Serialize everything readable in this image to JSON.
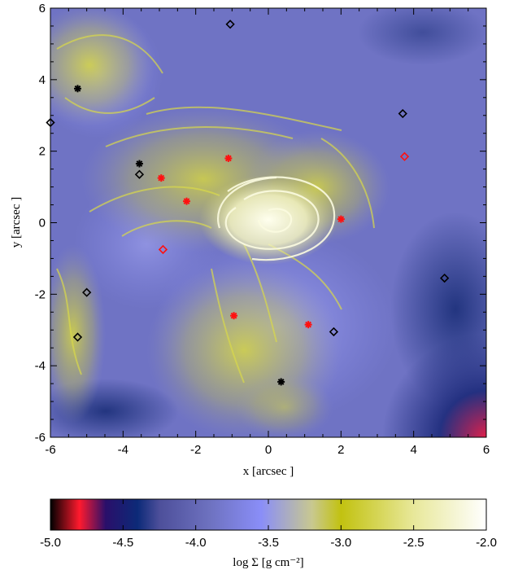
{
  "chart_data": {
    "type": "heatmap",
    "title": "",
    "xlabel": "x [arcsec ]",
    "ylabel": "y [arcsec ]",
    "xlim": [
      -6,
      6
    ],
    "ylim": [
      -6,
      6
    ],
    "xticks": [
      "-6",
      "-4",
      "-2",
      "0",
      "2",
      "4",
      "6"
    ],
    "yticks": [
      "-6",
      "-4",
      "-2",
      "0",
      "2",
      "4",
      "6"
    ],
    "grid": false,
    "colorbar": {
      "label": "log Σ [g cm⁻²]",
      "range": [
        -5.0,
        -2.0
      ],
      "ticks": [
        "-5.0",
        "-4.5",
        "-4.0",
        "-3.5",
        "-3.0",
        "-2.5",
        "-2.0"
      ],
      "stops": [
        {
          "v": -5.0,
          "color": "#000000"
        },
        {
          "v": -4.8,
          "color": "#ff1a2e"
        },
        {
          "v": -4.62,
          "color": "#2a0f6a"
        },
        {
          "v": -4.4,
          "color": "#0c2a78"
        },
        {
          "v": -4.25,
          "color": "#4d4f9a"
        },
        {
          "v": -3.9,
          "color": "#6e72c0"
        },
        {
          "v": -3.55,
          "color": "#8a8ef8"
        },
        {
          "v": -3.2,
          "color": "#c8c890"
        },
        {
          "v": -3.0,
          "color": "#c2c210"
        },
        {
          "v": -2.5,
          "color": "#e8e89a"
        },
        {
          "v": -2.0,
          "color": "#ffffff"
        }
      ]
    },
    "markers": {
      "black_asterisk": [
        {
          "x": -5.25,
          "y": 3.75
        },
        {
          "x": -3.55,
          "y": 1.65
        },
        {
          "x": 0.35,
          "y": -4.45
        }
      ],
      "red_asterisk": [
        {
          "x": -2.95,
          "y": 1.25
        },
        {
          "x": -2.25,
          "y": 0.6
        },
        {
          "x": -1.1,
          "y": 1.8
        },
        {
          "x": 2.0,
          "y": 0.1
        },
        {
          "x": -0.95,
          "y": -2.6
        },
        {
          "x": 1.1,
          "y": -2.85
        }
      ],
      "black_diamond": [
        {
          "x": -1.05,
          "y": 5.55
        },
        {
          "x": 3.7,
          "y": 3.05
        },
        {
          "x": -3.55,
          "y": 1.35
        },
        {
          "x": -6.0,
          "y": 2.8
        },
        {
          "x": -5.0,
          "y": -1.95
        },
        {
          "x": -5.25,
          "y": -3.2
        },
        {
          "x": 1.8,
          "y": -3.05
        },
        {
          "x": 4.85,
          "y": -1.55
        }
      ],
      "red_diamond": [
        {
          "x": 3.75,
          "y": 1.85
        },
        {
          "x": -2.9,
          "y": -0.75
        }
      ]
    }
  }
}
